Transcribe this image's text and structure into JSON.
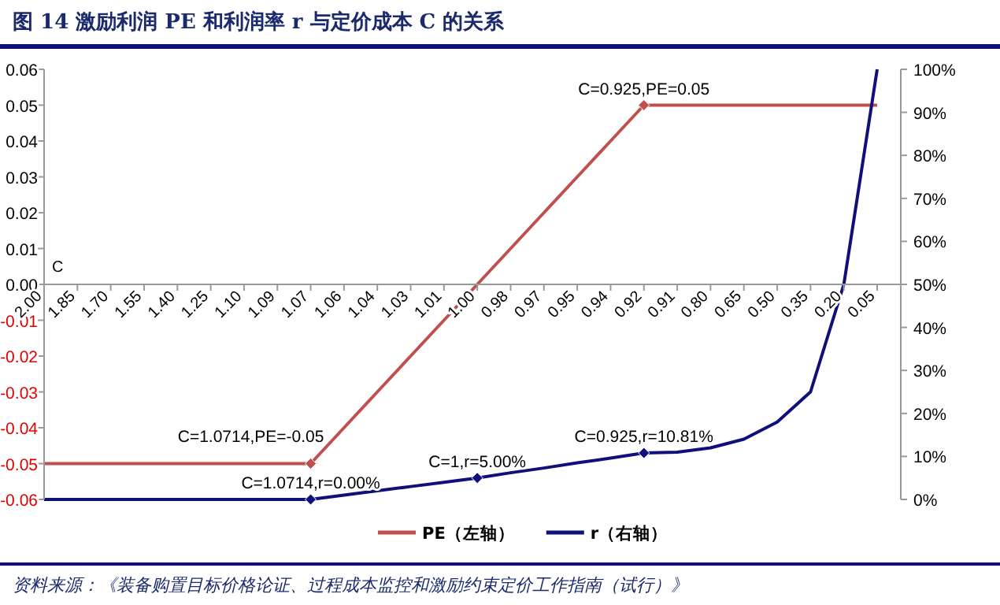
{
  "chart_data": {
    "type": "line",
    "title": "图 14 激励利润 PE 和利润率 r 与定价成本 C 的关系",
    "xlabel": "C",
    "categories": [
      "2.00",
      "1.85",
      "1.70",
      "1.55",
      "1.40",
      "1.25",
      "1.10",
      "1.09",
      "1.07",
      "1.06",
      "1.04",
      "1.03",
      "1.01",
      "1.00",
      "0.98",
      "0.97",
      "0.95",
      "0.94",
      "0.92",
      "0.91",
      "0.80",
      "0.65",
      "0.50",
      "0.35",
      "0.20",
      "0.05"
    ],
    "series": [
      {
        "name": "PE（左轴）",
        "color": "#c0504d",
        "values": [
          -0.05,
          -0.05,
          -0.05,
          -0.05,
          -0.05,
          -0.05,
          -0.05,
          -0.05,
          -0.05,
          -0.04,
          -0.03,
          -0.02,
          -0.01,
          0,
          0.01,
          0.02,
          0.03,
          0.04,
          0.05,
          0.05,
          0.05,
          0.05,
          0.05,
          0.05,
          0.05,
          0.05
        ]
      },
      {
        "name": "r（右轴）",
        "color": "#10107a",
        "axis": "y2",
        "values": [
          0,
          0,
          0,
          0,
          0,
          0,
          0,
          0,
          0,
          1,
          2,
          3,
          4,
          5,
          6.2,
          7.3,
          8.5,
          9.6,
          10.8,
          11,
          12,
          14,
          18,
          25,
          50,
          100
        ]
      }
    ],
    "ylim": [
      -0.06,
      0.06
    ],
    "yticks": [
      {
        "value": -0.06,
        "label": "-0.06"
      },
      {
        "value": -0.05,
        "label": "-0.05"
      },
      {
        "value": -0.04,
        "label": "-0.04"
      },
      {
        "value": -0.03,
        "label": "-0.03"
      },
      {
        "value": -0.02,
        "label": "-0.02"
      },
      {
        "value": -0.01,
        "label": "-0.01"
      },
      {
        "value": 0,
        "label": "0.00"
      },
      {
        "value": 0.01,
        "label": "0.01"
      },
      {
        "value": 0.02,
        "label": "0.02"
      },
      {
        "value": 0.03,
        "label": "0.03"
      },
      {
        "value": 0.04,
        "label": "0.04"
      },
      {
        "value": 0.05,
        "label": "0.05"
      },
      {
        "value": 0.06,
        "label": "0.06"
      }
    ],
    "y2lim": [
      0,
      100
    ],
    "y2ticks": [
      {
        "value": 0,
        "label": "0%"
      },
      {
        "value": 10,
        "label": "10%"
      },
      {
        "value": 20,
        "label": "20%"
      },
      {
        "value": 30,
        "label": "30%"
      },
      {
        "value": 40,
        "label": "40%"
      },
      {
        "value": 50,
        "label": "50%"
      },
      {
        "value": 60,
        "label": "60%"
      },
      {
        "value": 70,
        "label": "70%"
      },
      {
        "value": 80,
        "label": "80%"
      },
      {
        "value": 90,
        "label": "90%"
      },
      {
        "value": 100,
        "label": "100%"
      }
    ],
    "annotations": [
      {
        "text": "C=0.925,PE=0.05",
        "x": "0.92",
        "y": 0.05
      },
      {
        "text": "C=1.0714,PE=-0.05",
        "x": "1.07",
        "y": -0.05
      },
      "C=1,r=5.00%",
      "C=0.925,r=10.81%",
      "C=1.0714,r=0.00%",
      "资料来源：《装备购置目标价格论证、过程成本监控和激励约束定价工作指南（试行）》"
    ],
    "legend": "bottom",
    "grid": false
  }
}
